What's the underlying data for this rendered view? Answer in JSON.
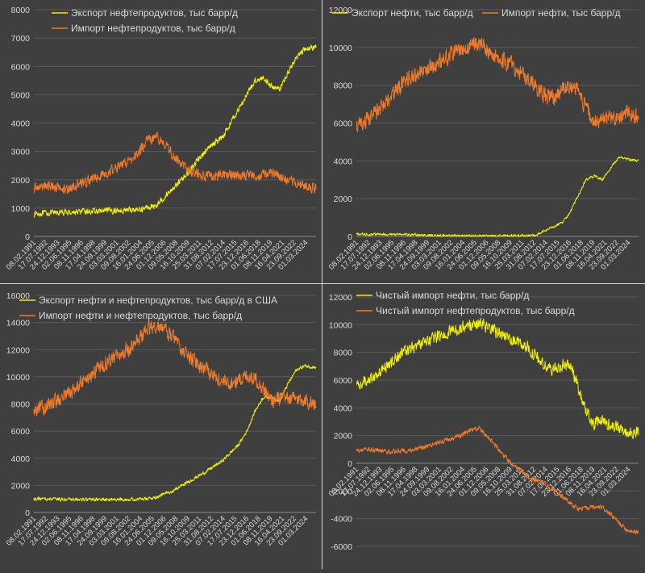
{
  "colors": {
    "export": "#f0f000",
    "import": "#f07a2a",
    "grid": "#5a5a5a",
    "text": "#d9d9d9"
  },
  "chart_data": [
    {
      "type": "line",
      "id": "product-trade",
      "legend_position": "top",
      "grid": true,
      "ylim": [
        0,
        8000
      ],
      "yticks": [
        "0",
        "1000",
        "2000",
        "3000",
        "4000",
        "5000",
        "6000",
        "7000",
        "8000"
      ],
      "x_dates": [
        "08.02.1991",
        "17.07.1992",
        "24.12.1993",
        "02.06.1995",
        "08.11.1996",
        "17.04.1998",
        "24.09.1999",
        "03.03.2001",
        "09.08.2002",
        "16.01.2004",
        "24.06.2005",
        "01.12.2006",
        "09.05.2008",
        "16.10.2009",
        "25.03.2011",
        "31.08.2012",
        "07.02.2014",
        "17.07.2015",
        "23.12.2016",
        "01.06.2018",
        "08.11.2019",
        "16.04.2021",
        "23.09.2022",
        "01.03.2024"
      ],
      "x_range": [
        1991.1,
        2025.4
      ],
      "series": [
        {
          "name": "Экспорт нефтепродуктов, тыс барр/д",
          "color": "#f0f000",
          "noise": 90,
          "points": [
            [
              1991.1,
              800
            ],
            [
              1995,
              850
            ],
            [
              2000,
              900
            ],
            [
              2004,
              950
            ],
            [
              2006,
              1100
            ],
            [
              2008,
              1700
            ],
            [
              2009,
              2000
            ],
            [
              2010,
              2300
            ],
            [
              2011,
              2700
            ],
            [
              2012,
              3000
            ],
            [
              2013,
              3300
            ],
            [
              2014,
              3500
            ],
            [
              2015,
              4000
            ],
            [
              2016,
              4500
            ],
            [
              2017,
              5000
            ],
            [
              2018,
              5500
            ],
            [
              2019,
              5600
            ],
            [
              2020,
              5300
            ],
            [
              2021,
              5200
            ],
            [
              2022,
              5800
            ],
            [
              2023,
              6300
            ],
            [
              2024,
              6600
            ],
            [
              2025.4,
              6700
            ]
          ]
        },
        {
          "name": "Импорт нефтепродуктов, тыс барр/д",
          "color": "#f07a2a",
          "noise": 160,
          "points": [
            [
              1991.1,
              1700
            ],
            [
              1993,
              1800
            ],
            [
              1995,
              1650
            ],
            [
              1997,
              1900
            ],
            [
              1999,
              2100
            ],
            [
              2001,
              2400
            ],
            [
              2003,
              2700
            ],
            [
              2005,
              3400
            ],
            [
              2006,
              3500
            ],
            [
              2007,
              3300
            ],
            [
              2008,
              2900
            ],
            [
              2009,
              2600
            ],
            [
              2010,
              2300
            ],
            [
              2012,
              2100
            ],
            [
              2015,
              2200
            ],
            [
              2018,
              2100
            ],
            [
              2020,
              2300
            ],
            [
              2022,
              2000
            ],
            [
              2024,
              1800
            ],
            [
              2025.4,
              1700
            ]
          ]
        }
      ]
    },
    {
      "type": "line",
      "id": "crude-trade",
      "legend_position": "top",
      "grid": true,
      "ylim": [
        0,
        12000
      ],
      "yticks": [
        "0",
        "2000",
        "4000",
        "6000",
        "8000",
        "10000",
        "12000"
      ],
      "x_dates": [
        "08.02.1991",
        "17.07.1992",
        "24.12.1993",
        "02.06.1995",
        "08.11.1996",
        "17.04.1998",
        "24.09.1999",
        "03.03.2001",
        "09.08.2002",
        "16.01.2004",
        "24.06.2005",
        "01.12.2006",
        "09.05.2008",
        "16.10.2009",
        "25.03.2011",
        "31.08.2012",
        "07.02.2014",
        "17.07.2015",
        "23.12.2016",
        "01.06.2018",
        "08.11.2019",
        "16.04.2021",
        "23.09.2022",
        "01.03.2024"
      ],
      "x_range": [
        1991.1,
        2025.4
      ],
      "series": [
        {
          "name": "Экспорт нефти, тыс барр/д",
          "color": "#f0f000",
          "noise": 60,
          "points": [
            [
              1991.1,
              120
            ],
            [
              1996,
              110
            ],
            [
              2000,
              60
            ],
            [
              2005,
              30
            ],
            [
              2010,
              40
            ],
            [
              2013,
              60
            ],
            [
              2014,
              300
            ],
            [
              2015,
              500
            ],
            [
              2016,
              700
            ],
            [
              2017,
              1200
            ],
            [
              2018,
              2100
            ],
            [
              2019,
              3000
            ],
            [
              2020,
              3200
            ],
            [
              2021,
              3000
            ],
            [
              2022,
              3600
            ],
            [
              2023,
              4200
            ],
            [
              2024,
              4100
            ],
            [
              2025.4,
              4000
            ]
          ]
        },
        {
          "name": "Импорт нефти, тыс барр/д",
          "color": "#f07a2a",
          "noise": 380,
          "points": [
            [
              1991.1,
              5800
            ],
            [
              1993,
              6300
            ],
            [
              1995,
              7200
            ],
            [
              1997,
              8200
            ],
            [
              1999,
              8700
            ],
            [
              2001,
              9200
            ],
            [
              2003,
              9700
            ],
            [
              2005,
              10100
            ],
            [
              2006,
              10200
            ],
            [
              2007,
              9900
            ],
            [
              2008,
              9600
            ],
            [
              2010,
              9100
            ],
            [
              2012,
              8400
            ],
            [
              2014,
              7400
            ],
            [
              2015,
              7300
            ],
            [
              2017,
              8000
            ],
            [
              2018,
              7800
            ],
            [
              2019,
              6800
            ],
            [
              2020,
              6000
            ],
            [
              2021,
              6200
            ],
            [
              2022,
              6300
            ],
            [
              2024,
              6500
            ],
            [
              2025.4,
              6300
            ]
          ]
        }
      ]
    },
    {
      "type": "line",
      "id": "total-trade",
      "legend_position": "top",
      "grid": true,
      "ylim": [
        0,
        16000
      ],
      "yticks": [
        "0",
        "2000",
        "4000",
        "6000",
        "8000",
        "10000",
        "12000",
        "14000",
        "16000"
      ],
      "x_dates": [
        "08.02.1991",
        "17.07.1992",
        "24.12.1993",
        "02.06.1995",
        "08.11.1996",
        "17.04.1998",
        "24.09.1999",
        "03.03.2001",
        "09.08.2002",
        "16.01.2004",
        "24.06.2005",
        "01.12.2006",
        "09.05.2008",
        "16.10.2009",
        "25.03.2011",
        "31.08.2012",
        "07.02.2014",
        "17.07.2015",
        "23.12.2016",
        "01.06.2018",
        "08.11.2019",
        "16.04.2021",
        "23.09.2022",
        "01.03.2024"
      ],
      "x_range": [
        1991.1,
        2025.4
      ],
      "series": [
        {
          "name": "Экспорт нефти и нефтепродуктов, тыс барр/д в США",
          "color": "#f0f000",
          "noise": 110,
          "points": [
            [
              1991.1,
              1000
            ],
            [
              1996,
              950
            ],
            [
              2001,
              950
            ],
            [
              2005,
              1000
            ],
            [
              2006,
              1150
            ],
            [
              2008,
              1600
            ],
            [
              2010,
              2300
            ],
            [
              2012,
              3000
            ],
            [
              2014,
              3800
            ],
            [
              2016,
              5000
            ],
            [
              2017,
              6000
            ],
            [
              2018,
              7500
            ],
            [
              2019,
              8500
            ],
            [
              2020,
              8500
            ],
            [
              2021,
              8200
            ],
            [
              2022,
              9500
            ],
            [
              2023,
              10500
            ],
            [
              2024,
              10800
            ],
            [
              2025.4,
              10700
            ]
          ]
        },
        {
          "name": "Импорт нефти и нефтепродуктов, тыс барр/д",
          "color": "#f07a2a",
          "noise": 480,
          "points": [
            [
              1991.1,
              7400
            ],
            [
              1993,
              8000
            ],
            [
              1995,
              8600
            ],
            [
              1997,
              9600
            ],
            [
              1999,
              10700
            ],
            [
              2001,
              11500
            ],
            [
              2003,
              12200
            ],
            [
              2005,
              13500
            ],
            [
              2006,
              13800
            ],
            [
              2007,
              13500
            ],
            [
              2008,
              12900
            ],
            [
              2009,
              11900
            ],
            [
              2010,
              11400
            ],
            [
              2012,
              10600
            ],
            [
              2014,
              9600
            ],
            [
              2015,
              9500
            ],
            [
              2017,
              10100
            ],
            [
              2018,
              9900
            ],
            [
              2019,
              9100
            ],
            [
              2020,
              8200
            ],
            [
              2021,
              8400
            ],
            [
              2022,
              8400
            ],
            [
              2024,
              8300
            ],
            [
              2025.4,
              7900
            ]
          ]
        }
      ]
    },
    {
      "type": "line",
      "id": "net-import",
      "legend_position": "top",
      "grid": true,
      "ylim": [
        -6000,
        12000
      ],
      "yticks": [
        "-6000",
        "-4000",
        "-2000",
        "0",
        "2000",
        "4000",
        "6000",
        "8000",
        "10000",
        "12000"
      ],
      "x_dates": [
        "08.02.1991",
        "17.07.1992",
        "24.12.1993",
        "02.06.1995",
        "08.11.1996",
        "17.04.1998",
        "24.09.1999",
        "03.03.2001",
        "09.08.2002",
        "16.01.2004",
        "24.06.2005",
        "01.12.2006",
        "09.05.2008",
        "16.10.2009",
        "25.03.2011",
        "31.08.2012",
        "07.02.2014",
        "17.07.2015",
        "23.12.2016",
        "01.06.2018",
        "08.11.2019",
        "16.04.2021",
        "23.09.2022",
        "01.03.2024"
      ],
      "x_range": [
        1991.1,
        2025.4
      ],
      "series": [
        {
          "name": "Чистый импорт нефти, тыс барр/д",
          "color": "#f0f000",
          "noise": 380,
          "points": [
            [
              1991.1,
              5600
            ],
            [
              1993,
              6200
            ],
            [
              1995,
              7100
            ],
            [
              1997,
              8100
            ],
            [
              1999,
              8600
            ],
            [
              2001,
              9100
            ],
            [
              2003,
              9600
            ],
            [
              2005,
              10000
            ],
            [
              2006,
              10100
            ],
            [
              2007,
              9800
            ],
            [
              2008,
              9500
            ],
            [
              2010,
              9000
            ],
            [
              2012,
              8300
            ],
            [
              2014,
              7000
            ],
            [
              2015,
              6800
            ],
            [
              2017,
              7200
            ],
            [
              2018,
              5600
            ],
            [
              2019,
              3800
            ],
            [
              2020,
              2800
            ],
            [
              2021,
              3100
            ],
            [
              2022,
              2700
            ],
            [
              2023,
              2500
            ],
            [
              2024,
              2300
            ],
            [
              2025.4,
              2200
            ]
          ]
        },
        {
          "name": "Чистый импорт нефтепродуктов, тыс барр/д",
          "color": "#f07a2a",
          "noise": 150,
          "points": [
            [
              1991.1,
              900
            ],
            [
              1993,
              1000
            ],
            [
              1995,
              800
            ],
            [
              1997,
              900
            ],
            [
              1999,
              1100
            ],
            [
              2001,
              1500
            ],
            [
              2003,
              1800
            ],
            [
              2005,
              2400
            ],
            [
              2006,
              2500
            ],
            [
              2007,
              2000
            ],
            [
              2008,
              1300
            ],
            [
              2009,
              600
            ],
            [
              2010,
              0
            ],
            [
              2011,
              -500
            ],
            [
              2012,
              -1000
            ],
            [
              2014,
              -1500
            ],
            [
              2016,
              -2300
            ],
            [
              2018,
              -3300
            ],
            [
              2020,
              -3200
            ],
            [
              2021,
              -3200
            ],
            [
              2022,
              -3700
            ],
            [
              2023,
              -4300
            ],
            [
              2024,
              -4800
            ],
            [
              2025.4,
              -5000
            ]
          ]
        }
      ]
    }
  ]
}
